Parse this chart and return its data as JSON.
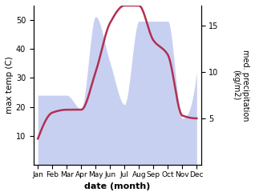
{
  "months": [
    "Jan",
    "Feb",
    "Mar",
    "Apr",
    "May",
    "Jun",
    "Jul",
    "Aug",
    "Sep",
    "Oct",
    "Nov",
    "Dec"
  ],
  "month_positions": [
    0,
    1,
    2,
    3,
    4,
    5,
    6,
    7,
    8,
    9,
    10,
    11
  ],
  "temperature": [
    9,
    18,
    19,
    19,
    32,
    49,
    55,
    55,
    43,
    38,
    17,
    16
  ],
  "precipitation": [
    7.5,
    7.5,
    7.5,
    6.0,
    16.0,
    11.0,
    6.5,
    15.5,
    15.5,
    15.5,
    5.0,
    10.0
  ],
  "temp_color": "#b03050",
  "precip_fill_color": "#c8d0f2",
  "temp_ylim": [
    0,
    55
  ],
  "precip_ylim": [
    0,
    17.19
  ],
  "temp_yticks": [
    10,
    20,
    30,
    40,
    50
  ],
  "precip_yticks": [
    5,
    10,
    15
  ],
  "xlabel": "date (month)",
  "ylabel_left": "max temp (C)",
  "ylabel_right": "med. precipitation\n(kg/m2)",
  "bg_color": "#ffffff",
  "linewidth": 1.8
}
